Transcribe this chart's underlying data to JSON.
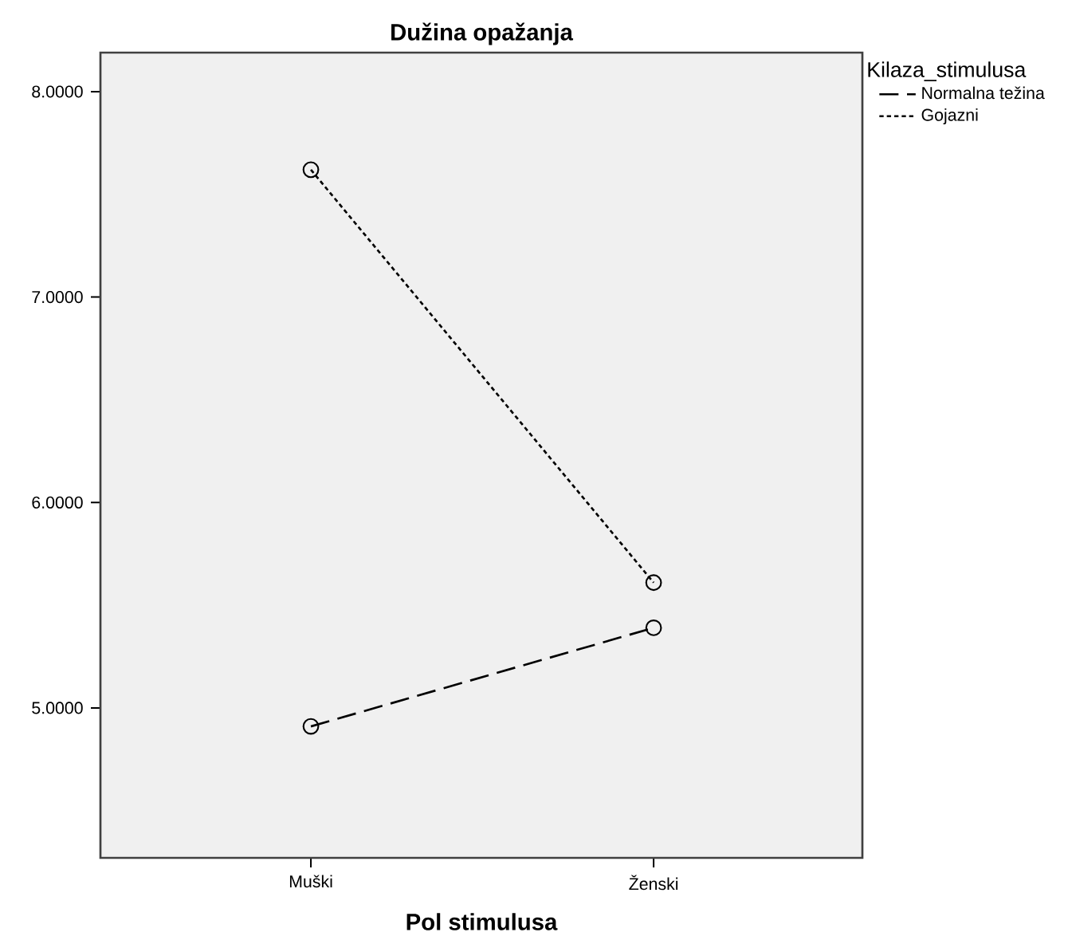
{
  "chart_data": {
    "type": "line",
    "title": "Dužina opažanja",
    "xlabel": "Pol stimulusa",
    "legend_title": "Kilaza_stimulusa",
    "categories": [
      "Muški",
      "Ženski"
    ],
    "series": [
      {
        "name": "Normalna težina",
        "color": "#000000",
        "line_style": "dashed",
        "values": [
          4.91,
          5.39
        ]
      },
      {
        "name": "Gojazni",
        "color": "#000000",
        "line_style": "dotted",
        "values": [
          7.62,
          5.61
        ]
      }
    ],
    "ylim": [
      4.27,
      8.19
    ],
    "yticks": [
      {
        "value": 5,
        "label": "5.0000"
      },
      {
        "value": 6,
        "label": "6.0000"
      },
      {
        "value": 7,
        "label": "7.0000"
      },
      {
        "value": 8,
        "label": "8.0000"
      }
    ],
    "marker": "circle",
    "legend": "top right"
  }
}
